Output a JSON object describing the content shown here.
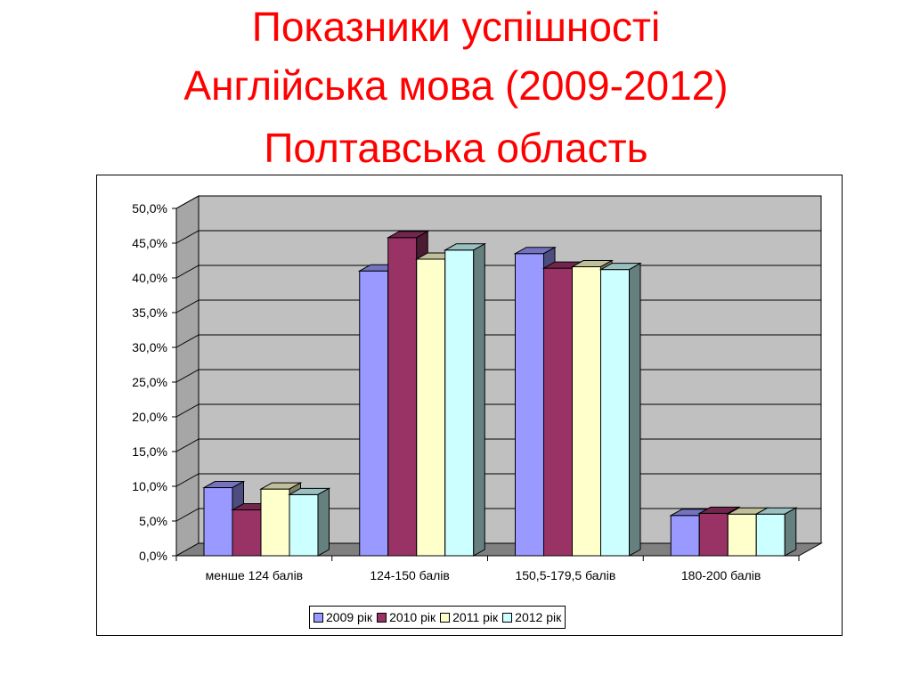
{
  "title": {
    "line1": "Показники успішності",
    "line2": "Англійська мова (2009-2012)",
    "line3": "Полтавська область"
  },
  "chart_data": {
    "type": "bar",
    "categories": [
      "менше 124 балів",
      "124-150 балів",
      "150,5-179,5 балів",
      "180-200 балів"
    ],
    "series": [
      {
        "name": "2009 рік",
        "color": "#9999ff",
        "values": [
          9.8,
          41.0,
          43.5,
          5.8
        ]
      },
      {
        "name": "2010 рік",
        "color": "#993366",
        "values": [
          6.6,
          45.8,
          41.4,
          6.1
        ]
      },
      {
        "name": "2011 рік",
        "color": "#ffffcc",
        "values": [
          9.6,
          42.7,
          41.6,
          6.0
        ]
      },
      {
        "name": "2012 рік",
        "color": "#ccffff",
        "values": [
          8.8,
          44.0,
          41.2,
          6.0
        ]
      }
    ],
    "y_tick_labels": [
      "0,0%",
      "5,0%",
      "10,0%",
      "15,0%",
      "20,0%",
      "25,0%",
      "30,0%",
      "35,0%",
      "40,0%",
      "45,0%",
      "50,0%"
    ],
    "ylim": [
      0,
      50
    ],
    "grid": true,
    "legend_position": "bottom",
    "wall_color": "#c0c0c0",
    "floor_color": "#808080"
  }
}
